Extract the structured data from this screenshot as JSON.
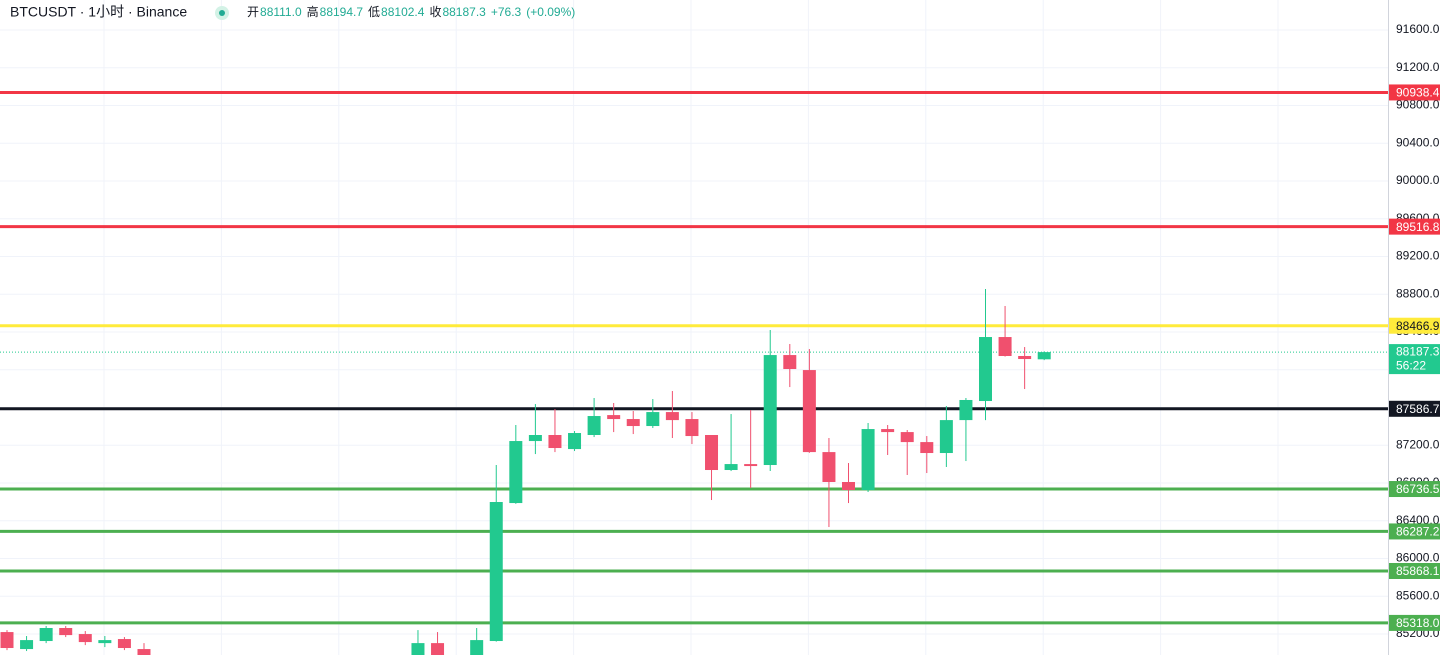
{
  "chart_data": {
    "type": "candlestick",
    "title": "BTCUSDT · 1小时 · Binance",
    "legend": {
      "open_label": "开",
      "open": "88111.0",
      "high_label": "高",
      "high": "88194.7",
      "low_label": "低",
      "low": "88102.4",
      "close_label": "收",
      "close": "88187.3",
      "change": "+76.3",
      "change_pct": "(+0.09%)"
    },
    "up_color": "#22c98f",
    "down_color": "#f0506e",
    "categories": [
      null,
      null,
      null,
      null,
      null,
      null,
      null,
      null,
      null,
      null,
      null,
      null,
      null,
      null,
      null,
      null,
      null,
      null,
      null,
      null,
      null,
      null,
      null,
      null,
      null,
      null,
      null,
      null,
      null,
      null,
      null,
      null,
      null,
      null,
      null,
      null,
      null,
      null,
      null,
      null,
      null,
      null,
      null,
      null,
      null,
      null,
      null,
      null,
      null,
      null,
      null,
      null,
      null,
      null
    ],
    "candles": {
      "open": [
        85221,
        85041,
        85126,
        85264,
        85200,
        85104,
        85147,
        85041,
        null,
        null,
        null,
        null,
        null,
        null,
        null,
        null,
        null,
        null,
        null,
        null,
        null,
        84900,
        85104,
        null,
        84920,
        85126,
        86588,
        87245,
        87309,
        87160,
        87309,
        87520,
        87478,
        87404,
        87552,
        87478,
        87309,
        86938,
        87001,
        86991,
        88156,
        87997,
        87128,
        86811,
        86726,
        87372,
        87340,
        87234,
        87118,
        87467,
        87669,
        88347,
        88146,
        88111.0
      ],
      "high": [
        85242,
        85179,
        85285,
        85285,
        85232,
        85179,
        85168,
        85104,
        null,
        null,
        null,
        null,
        null,
        null,
        null,
        null,
        null,
        null,
        null,
        null,
        null,
        85242,
        85221,
        null,
        85264,
        86991,
        87415,
        87637,
        87584,
        87351,
        87701,
        87648,
        87563,
        87690,
        87775,
        87552,
        87309,
        87531,
        87573,
        88421,
        88273,
        88220,
        87277,
        87012,
        87436,
        87415,
        87362,
        87298,
        87616,
        87701,
        88856,
        88676,
        88241,
        88194.7
      ],
      "low": [
        85030,
        85020,
        85104,
        85168,
        85083,
        85062,
        85030,
        84900,
        null,
        null,
        null,
        null,
        null,
        null,
        null,
        null,
        null,
        null,
        null,
        null,
        null,
        84880,
        84880,
        null,
        84900,
        85120,
        86580,
        87107,
        87128,
        87139,
        87287,
        87340,
        87319,
        87383,
        87277,
        87213,
        86620,
        86927,
        86747,
        86927,
        87817,
        87120,
        86334,
        86588,
        86705,
        87097,
        86885,
        86906,
        86970,
        87033,
        87467,
        88140,
        87796,
        88102.4
      ],
      "close": [
        85052,
        85136,
        85264,
        85189,
        85115,
        85136,
        85052,
        84925,
        null,
        null,
        null,
        null,
        null,
        null,
        null,
        null,
        null,
        null,
        null,
        null,
        null,
        85104,
        84900,
        null,
        85136,
        86599,
        87245,
        87309,
        87171,
        87330,
        87510,
        87478,
        87404,
        87552,
        87467,
        87298,
        86938,
        87001,
        86980,
        88156,
        88008,
        87128,
        86811,
        86726,
        87372,
        87340,
        87234,
        87118,
        87467,
        87680,
        88347,
        88146,
        88114,
        88187.3
      ]
    },
    "ylim": [
      84978,
      91918
    ],
    "yticks": [
      {
        "value": 85200,
        "label": "85200.0"
      },
      {
        "value": 85600,
        "label": "85600.0"
      },
      {
        "value": 86000,
        "label": "86000.0"
      },
      {
        "value": 86400,
        "label": "86400.0"
      },
      {
        "value": 86800,
        "label": "86800.0"
      },
      {
        "value": 87200,
        "label": "87200.0"
      },
      {
        "value": 87600,
        "label": "87600.0"
      },
      {
        "value": 88000,
        "label": "88000.0"
      },
      {
        "value": 88400,
        "label": "88400.0"
      },
      {
        "value": 88800,
        "label": "88800.0"
      },
      {
        "value": 89200,
        "label": "89200.0"
      },
      {
        "value": 89600,
        "label": "89600.0"
      },
      {
        "value": 90000,
        "label": "90000.0"
      },
      {
        "value": 90400,
        "label": "90400.0"
      },
      {
        "value": 90800,
        "label": "90800.0"
      },
      {
        "value": 91200,
        "label": "91200.0"
      },
      {
        "value": 91600,
        "label": "91600.0"
      }
    ],
    "grid": true,
    "levels": [
      {
        "value": 90938.4,
        "color": "#f23645"
      },
      {
        "value": 89516.8,
        "color": "#f23645"
      },
      {
        "value": 88466.9,
        "color": "#ffeb3b"
      },
      {
        "value": 87586.7,
        "color": "#131722"
      },
      {
        "value": 86736.5,
        "color": "#4caf50"
      },
      {
        "value": 86287.2,
        "color": "#4caf50"
      },
      {
        "value": 85868.1,
        "color": "#4caf50"
      },
      {
        "value": 85318.0,
        "label": "85318.0",
        "color": "#4caf50"
      }
    ],
    "last_price": {
      "value": 88187.3,
      "countdown": "56:22",
      "color": "#22c98f"
    }
  }
}
